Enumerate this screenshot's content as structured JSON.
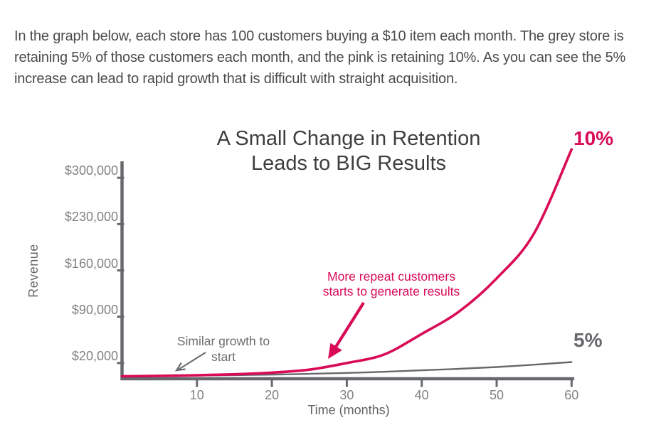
{
  "intro": {
    "lines": [
      "In the graph below, each store has 100 customers buying a $10 item each month. The grey store is",
      "retaining 5% of those customers each month, and the pink is retaining 10%. As you can see the 5%",
      "increase can lead to rapid growth that is difficult with straight acquisition."
    ]
  },
  "chart": {
    "title_line1": "A Small Change in Retention",
    "title_line2": "Leads to BIG Results",
    "y_axis_label": "Revenue",
    "x_axis_label": "Time (months)",
    "series_labels": {
      "pink": "10%",
      "grey": "5%"
    },
    "annotations": {
      "pink_line1": "More repeat customers",
      "pink_line2": "starts to generate results",
      "grey_line1": "Similar growth to",
      "grey_line2": "start"
    }
  },
  "colors": {
    "pink": "#d90b56",
    "grey": "#66686b",
    "annotation_grey": "#6d6e71",
    "tick_label": "#808285",
    "title": "#3e3e40",
    "paragraph": "#4a4b4d"
  },
  "chart_data": {
    "type": "line",
    "title": "A Small Change in Retention Leads to BIG Results",
    "xlabel": "Time (months)",
    "ylabel": "Revenue",
    "xlim": [
      0,
      60
    ],
    "ylim": [
      0,
      300000
    ],
    "grid": false,
    "legend_position": "end-of-line labels",
    "x_ticks": [
      10,
      20,
      30,
      40,
      50,
      60
    ],
    "y_ticks": [
      {
        "label": "$20,000",
        "value": 20000
      },
      {
        "label": "$90,000",
        "value": 90000
      },
      {
        "label": "$160,000",
        "value": 160000
      },
      {
        "label": "$230,000",
        "value": 230000
      },
      {
        "label": "$300,000",
        "value": 300000
      }
    ],
    "x": [
      0,
      5,
      10,
      15,
      20,
      25,
      30,
      35,
      40,
      45,
      50,
      55,
      60
    ],
    "series": [
      {
        "name": "10% retention (pink store)",
        "label": "10%",
        "color_key": "pink",
        "values": [
          0,
          600,
          1500,
          3000,
          5500,
          10000,
          20000,
          33000,
          64000,
          98000,
          148000,
          216000,
          343000
        ]
      },
      {
        "name": "5% retention (grey store)",
        "label": "5%",
        "color_key": "grey",
        "values": [
          0,
          400,
          1000,
          1700,
          2500,
          3600,
          5000,
          6800,
          9000,
          11300,
          14000,
          17500,
          21500
        ]
      }
    ]
  }
}
